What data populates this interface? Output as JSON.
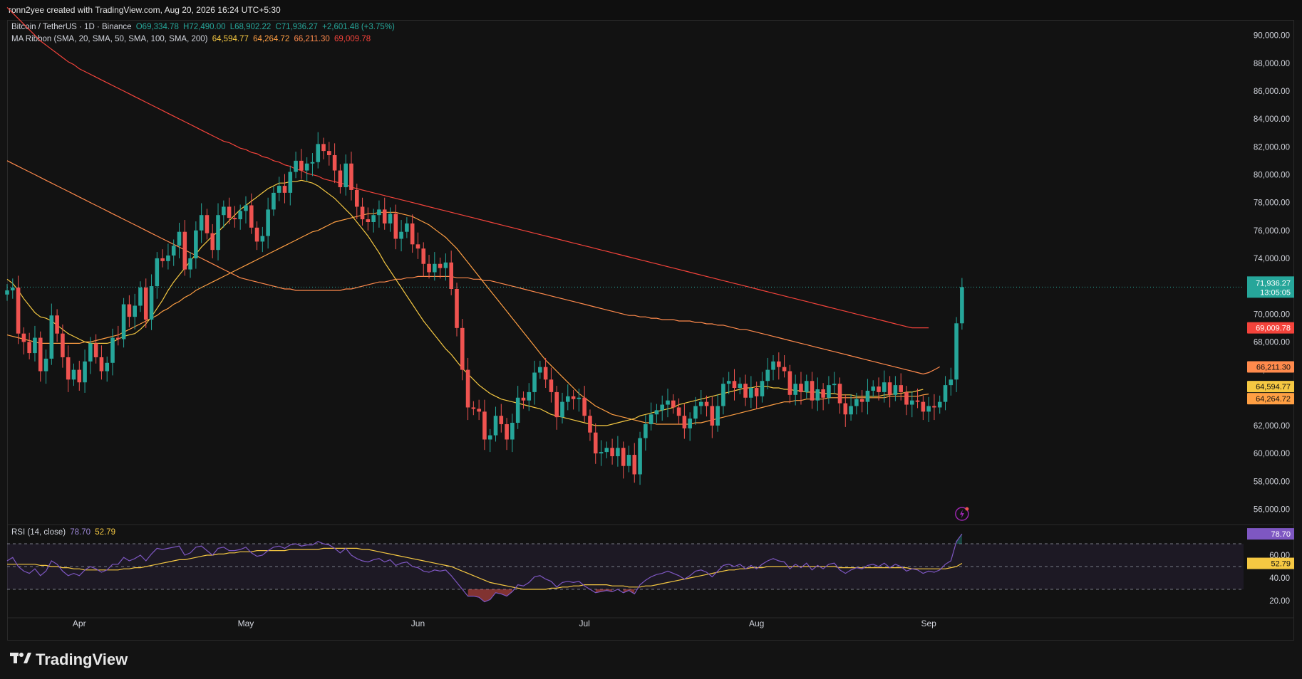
{
  "header": {
    "credit": "ronn2yee created with TradingView.com, Aug 20, 2026 16:24 UTC+5:30"
  },
  "legend": {
    "symbol": "Bitcoin / TetherUS · 1D · Binance",
    "open": "O69,334.78",
    "high": "H72,490.00",
    "low": "L68,902.22",
    "close": "C71,936.27",
    "change": "+2,601.48 (+3.75%)",
    "ma_label": "MA Ribbon (SMA, 20, SMA, 50, SMA, 100, SMA, 200)",
    "ma_values": [
      "64,594.77",
      "64,264.72",
      "66,211.30",
      "69,009.78"
    ],
    "rsi_label": "RSI (14, close)",
    "rsi_value": "78.70",
    "rsi_ma_value": "52.79"
  },
  "price_badges": {
    "last": "71,936.27",
    "countdown": "13:05:05",
    "sma200": "69,009.78",
    "sma100": "66,211.30",
    "sma20": "64,594.77",
    "sma50": "64,264.72",
    "rsi": "78.70",
    "rsi_ma": "52.79"
  },
  "colors": {
    "up": "#26a69a",
    "down": "#ef5350",
    "sma20": "#f5c842",
    "sma50": "#ff9f43",
    "sma100": "#ff8a4c",
    "sma200": "#f4433b",
    "rsi": "#7e57c2",
    "rsi_ma": "#f5c842",
    "background": "#121212"
  },
  "brand": {
    "name": "TradingView"
  },
  "chart_data": {
    "type": "candlestick",
    "title": "Bitcoin / TetherUS · 1D · Binance",
    "ylim": [
      55000,
      91000
    ],
    "y_ticks": [
      56000,
      58000,
      60000,
      62000,
      64000,
      66000,
      68000,
      70000,
      72000,
      74000,
      76000,
      78000,
      80000,
      82000,
      84000,
      86000,
      88000,
      90000
    ],
    "y_tick_labels": [
      "56,000.00",
      "58,000.00",
      "60,000.00",
      "62,000.00",
      "64,000.00",
      "66,000.00",
      "68,000.00",
      "70,000.00",
      "72,000.00",
      "74,000.00",
      "76,000.00",
      "78,000.00",
      "80,000.00",
      "82,000.00",
      "84,000.00",
      "86,000.00",
      "88,000.00",
      "90,000.00"
    ],
    "x_start_date": "2026-03-19",
    "x_months": [
      {
        "label": "Apr",
        "date": "2026-04-01"
      },
      {
        "label": "May",
        "date": "2026-05-01"
      },
      {
        "label": "Jun",
        "date": "2026-06-01"
      },
      {
        "label": "Jul",
        "date": "2026-07-01"
      },
      {
        "label": "Aug",
        "date": "2026-08-01"
      },
      {
        "label": "Sep",
        "date": "2026-09-01"
      }
    ],
    "closes": [
      71700,
      71900,
      68600,
      68000,
      67200,
      68300,
      65900,
      66800,
      69900,
      68600,
      66900,
      65300,
      66000,
      65100,
      66600,
      67900,
      66900,
      65900,
      66500,
      68300,
      68200,
      70700,
      69800,
      70600,
      71900,
      69600,
      72000,
      74000,
      73800,
      74200,
      74900,
      75900,
      73200,
      74000,
      76000,
      77100,
      75800,
      74600,
      77100,
      77700,
      76900,
      76800,
      77400,
      77800,
      76200,
      75200,
      75600,
      77500,
      78700,
      79200,
      78700,
      80200,
      81000,
      80300,
      80800,
      80900,
      82200,
      81700,
      81400,
      80300,
      79100,
      80800,
      78900,
      77700,
      76800,
      76600,
      77100,
      77500,
      76500,
      77200,
      75400,
      75900,
      76500,
      75000,
      74700,
      73600,
      73000,
      73600,
      73300,
      73700,
      71800,
      69000,
      66000,
      63300,
      63200,
      63000,
      61000,
      61300,
      62700,
      62100,
      61000,
      62200,
      64000,
      63800,
      64400,
      65800,
      66200,
      65300,
      64400,
      62600,
      63700,
      64100,
      63900,
      64000,
      62700,
      61500,
      60000,
      60100,
      60400,
      59800,
      60400,
      59100,
      59900,
      58500,
      61100,
      62100,
      62800,
      63100,
      63500,
      63800,
      63300,
      62700,
      61800,
      62500,
      63400,
      63700,
      63400,
      62000,
      63400,
      65000,
      65200,
      64700,
      65000,
      64000,
      64700,
      64100,
      65200,
      66000,
      66600,
      66200,
      65900,
      64200,
      65000,
      64400,
      65200,
      63800,
      64600,
      64000,
      64900,
      65000,
      63600,
      62800,
      63400,
      63900,
      63700,
      64500,
      64800,
      64400,
      65100,
      64200,
      64900,
      64400,
      63500,
      63800,
      63700,
      63000,
      63400,
      63300,
      63700,
      64900,
      65300,
      69334.78,
      71936.27
    ],
    "sma20": [
      72500,
      72200,
      71700,
      71100,
      70600,
      70100,
      69800,
      69700,
      69500,
      69200,
      68900,
      68600,
      68400,
      68200,
      68000,
      67900,
      67900,
      67900,
      67900,
      68000,
      68200,
      68400,
      68500,
      68600,
      68900,
      69300,
      69800,
      70400,
      71000,
      71700,
      72300,
      72800,
      73300,
      73800,
      74300,
      74800,
      75200,
      75600,
      75900,
      76300,
      76700,
      77100,
      77500,
      77800,
      78100,
      78400,
      78700,
      79000,
      79200,
      79400,
      79400,
      79500,
      79500,
      79600,
      79500,
      79400,
      79200,
      78900,
      78600,
      78300,
      77900,
      77500,
      77100,
      76600,
      76100,
      75600,
      75000,
      74400,
      73700,
      73100,
      72500,
      71900,
      71300,
      70700,
      70100,
      69500,
      69000,
      68500,
      68000,
      67500,
      67100,
      66600,
      66100,
      65700,
      65300,
      64900,
      64600,
      64300,
      64100,
      63900,
      63800,
      63700,
      63600,
      63500,
      63400,
      63300,
      63200,
      63000,
      62800,
      62700,
      62600,
      62500,
      62400,
      62300,
      62200,
      62100,
      62000,
      62000,
      62000,
      62100,
      62200,
      62300,
      62400,
      62500,
      62700,
      62800,
      62900,
      63000,
      63100,
      63200,
      63300,
      63500,
      63600,
      63700,
      63800,
      63900,
      64000,
      64100,
      64200,
      64300,
      64400,
      64500,
      64600,
      64700,
      64700,
      64800,
      64800,
      64800,
      64700,
      64700,
      64600,
      64600,
      64500,
      64500,
      64400,
      64400,
      64400,
      64300,
      64300,
      64300,
      64200,
      64200,
      64200,
      64100,
      64100,
      64100,
      64100,
      64100,
      64200,
      64200,
      64300,
      64300,
      64400,
      64400,
      64500,
      64594.77
    ],
    "sma50": [
      68500,
      68400,
      68300,
      68200,
      68100,
      68000,
      67900,
      67900,
      67900,
      67900,
      67900,
      67900,
      67900,
      67900,
      68000,
      68000,
      68100,
      68200,
      68300,
      68400,
      68500,
      68700,
      68900,
      69100,
      69300,
      69500,
      69700,
      69900,
      70200,
      70400,
      70700,
      70900,
      71200,
      71400,
      71700,
      71900,
      72100,
      72300,
      72500,
      72700,
      72900,
      73100,
      73300,
      73500,
      73700,
      73900,
      74100,
      74300,
      74500,
      74700,
      74900,
      75100,
      75300,
      75500,
      75700,
      75900,
      76000,
      76200,
      76400,
      76600,
      76700,
      76800,
      76900,
      77000,
      77100,
      77200,
      77200,
      77300,
      77300,
      77300,
      77300,
      77200,
      77100,
      77000,
      76800,
      76600,
      76400,
      76100,
      75800,
      75500,
      75100,
      74700,
      74200,
      73700,
      73200,
      72700,
      72200,
      71700,
      71200,
      70700,
      70200,
      69700,
      69200,
      68700,
      68200,
      67700,
      67200,
      66700,
      66300,
      65900,
      65500,
      65100,
      64700,
      64300,
      64000,
      63700,
      63400,
      63200,
      63000,
      62800,
      62700,
      62600,
      62500,
      62400,
      62300,
      62200,
      62200,
      62100,
      62100,
      62100,
      62100,
      62100,
      62100,
      62100,
      62200,
      62200,
      62300,
      62400,
      62500,
      62600,
      62700,
      62800,
      62900,
      63000,
      63100,
      63200,
      63300,
      63400,
      63500,
      63600,
      63700,
      63700,
      63800,
      63800,
      63900,
      63900,
      63900,
      63900,
      64000,
      64000,
      64000,
      64000,
      64000,
      64000,
      64000,
      64000,
      64000,
      64000,
      64000,
      64100,
      64100,
      64100,
      64100,
      64100,
      64100,
      64200,
      64264.72
    ],
    "sma100": [
      81000,
      80800,
      80600,
      80400,
      80200,
      80000,
      79800,
      79600,
      79400,
      79200,
      79000,
      78800,
      78600,
      78400,
      78200,
      78000,
      77800,
      77600,
      77400,
      77200,
      77000,
      76800,
      76600,
      76400,
      76200,
      76000,
      75800,
      75600,
      75400,
      75200,
      75000,
      74800,
      74600,
      74400,
      74200,
      74000,
      73800,
      73600,
      73400,
      73200,
      73000,
      72800,
      72600,
      72500,
      72400,
      72300,
      72200,
      72100,
      72000,
      71900,
      71800,
      71800,
      71700,
      71700,
      71700,
      71700,
      71700,
      71700,
      71700,
      71700,
      71700,
      71800,
      71800,
      71900,
      72000,
      72100,
      72200,
      72300,
      72300,
      72400,
      72500,
      72500,
      72600,
      72600,
      72700,
      72700,
      72700,
      72700,
      72700,
      72700,
      72700,
      72600,
      72600,
      72600,
      72500,
      72500,
      72400,
      72400,
      72300,
      72200,
      72100,
      72000,
      71900,
      71800,
      71700,
      71600,
      71500,
      71400,
      71300,
      71200,
      71100,
      71000,
      70900,
      70800,
      70700,
      70600,
      70500,
      70400,
      70300,
      70200,
      70100,
      70000,
      69900,
      69900,
      69800,
      69800,
      69700,
      69700,
      69600,
      69600,
      69600,
      69500,
      69500,
      69500,
      69400,
      69400,
      69300,
      69300,
      69200,
      69200,
      69100,
      69000,
      68900,
      68900,
      68800,
      68700,
      68600,
      68500,
      68400,
      68300,
      68200,
      68100,
      68000,
      67900,
      67800,
      67700,
      67600,
      67500,
      67400,
      67300,
      67200,
      67100,
      67000,
      66900,
      66800,
      66700,
      66600,
      66500,
      66400,
      66300,
      66200,
      66100,
      66000,
      65900,
      65800,
      65700,
      65800,
      66000,
      66211.3
    ],
    "sma200": [
      92000,
      91600,
      91200,
      90800,
      90400,
      90000,
      89600,
      89300,
      89000,
      88700,
      88400,
      88100,
      87900,
      87600,
      87400,
      87200,
      87000,
      86800,
      86600,
      86400,
      86200,
      86000,
      85800,
      85600,
      85400,
      85200,
      85000,
      84800,
      84600,
      84400,
      84200,
      84000,
      83800,
      83600,
      83400,
      83200,
      83000,
      82800,
      82600,
      82400,
      82300,
      82100,
      81900,
      81800,
      81600,
      81500,
      81300,
      81200,
      81000,
      80900,
      80700,
      80600,
      80400,
      80300,
      80100,
      80000,
      79900,
      79700,
      79600,
      79500,
      79400,
      79300,
      79100,
      79000,
      78900,
      78800,
      78700,
      78600,
      78500,
      78400,
      78300,
      78200,
      78100,
      78000,
      77900,
      77800,
      77700,
      77600,
      77500,
      77400,
      77300,
      77200,
      77100,
      77000,
      76900,
      76800,
      76700,
      76600,
      76500,
      76400,
      76300,
      76200,
      76100,
      76000,
      75900,
      75800,
      75700,
      75600,
      75500,
      75400,
      75300,
      75200,
      75100,
      75000,
      74900,
      74800,
      74700,
      74600,
      74500,
      74400,
      74300,
      74200,
      74100,
      74000,
      73900,
      73800,
      73700,
      73600,
      73500,
      73400,
      73300,
      73200,
      73100,
      73000,
      72900,
      72800,
      72700,
      72600,
      72500,
      72400,
      72300,
      72200,
      72100,
      72000,
      71900,
      71800,
      71700,
      71600,
      71500,
      71400,
      71300,
      71200,
      71100,
      71000,
      70900,
      70800,
      70700,
      70600,
      70500,
      70400,
      70300,
      70200,
      70100,
      70000,
      69900,
      69800,
      69700,
      69600,
      69500,
      69400,
      69300,
      69200,
      69100,
      69009.78,
      69009.78,
      69009.78,
      69009.78
    ],
    "rsi": {
      "label": "RSI (14, close)",
      "ylim": [
        10,
        85
      ],
      "y_ticks": [
        20,
        40,
        60
      ],
      "y_tick_labels": [
        "20.00",
        "40.00",
        "60.00"
      ],
      "bands": [
        30,
        50,
        70
      ],
      "values": [
        55,
        58,
        50,
        46,
        44,
        48,
        42,
        46,
        55,
        52,
        46,
        42,
        44,
        42,
        47,
        50,
        48,
        45,
        47,
        52,
        52,
        58,
        55,
        57,
        60,
        55,
        61,
        66,
        65,
        66,
        67,
        68,
        60,
        62,
        67,
        68,
        64,
        60,
        66,
        67,
        64,
        64,
        65,
        67,
        62,
        59,
        60,
        64,
        67,
        68,
        66,
        69,
        70,
        68,
        69,
        69,
        72,
        70,
        69,
        66,
        62,
        66,
        60,
        57,
        55,
        54,
        56,
        57,
        54,
        56,
        51,
        53,
        54,
        50,
        49,
        46,
        45,
        47,
        46,
        47,
        42,
        36,
        30,
        24,
        24,
        23,
        19,
        21,
        27,
        26,
        24,
        28,
        34,
        33,
        36,
        41,
        42,
        39,
        37,
        32,
        36,
        37,
        36,
        37,
        33,
        30,
        27,
        28,
        29,
        28,
        30,
        27,
        29,
        26,
        34,
        38,
        41,
        43,
        44,
        46,
        44,
        42,
        39,
        42,
        46,
        47,
        45,
        41,
        46,
        51,
        52,
        50,
        52,
        48,
        51,
        48,
        52,
        55,
        57,
        55,
        54,
        48,
        52,
        49,
        53,
        47,
        51,
        48,
        52,
        53,
        47,
        44,
        47,
        49,
        48,
        51,
        52,
        50,
        53,
        49,
        52,
        50,
        46,
        48,
        47,
        44,
        46,
        45,
        47,
        52,
        55,
        72,
        78.7
      ],
      "ma": [
        52,
        52,
        52,
        52,
        52,
        52,
        51,
        51,
        50,
        50,
        49,
        49,
        48,
        48,
        47,
        47,
        47,
        47,
        47,
        47,
        47,
        48,
        48,
        49,
        49,
        50,
        51,
        52,
        53,
        54,
        55,
        56,
        56,
        57,
        58,
        59,
        60,
        60,
        61,
        61,
        62,
        62,
        63,
        63,
        63,
        64,
        64,
        64,
        64,
        64,
        64,
        65,
        65,
        65,
        65,
        65,
        65,
        66,
        66,
        66,
        66,
        66,
        66,
        66,
        65,
        65,
        64,
        63,
        62,
        61,
        60,
        59,
        58,
        57,
        56,
        55,
        54,
        53,
        52,
        51,
        50,
        48,
        46,
        44,
        42,
        40,
        38,
        36,
        35,
        34,
        33,
        32,
        31,
        30,
        30,
        30,
        30,
        30,
        31,
        31,
        32,
        32,
        33,
        33,
        34,
        34,
        34,
        34,
        34,
        33,
        33,
        33,
        32,
        32,
        32,
        33,
        33,
        34,
        35,
        36,
        37,
        38,
        39,
        40,
        41,
        42,
        43,
        44,
        45,
        46,
        47,
        47,
        48,
        48,
        49,
        49,
        49,
        50,
        50,
        50,
        50,
        50,
        50,
        50,
        50,
        50,
        50,
        50,
        50,
        50,
        49,
        49,
        49,
        49,
        49,
        49,
        49,
        49,
        49,
        49,
        49,
        49,
        49,
        48,
        48,
        48,
        48,
        48,
        48,
        48,
        49,
        50,
        52.79
      ]
    }
  }
}
